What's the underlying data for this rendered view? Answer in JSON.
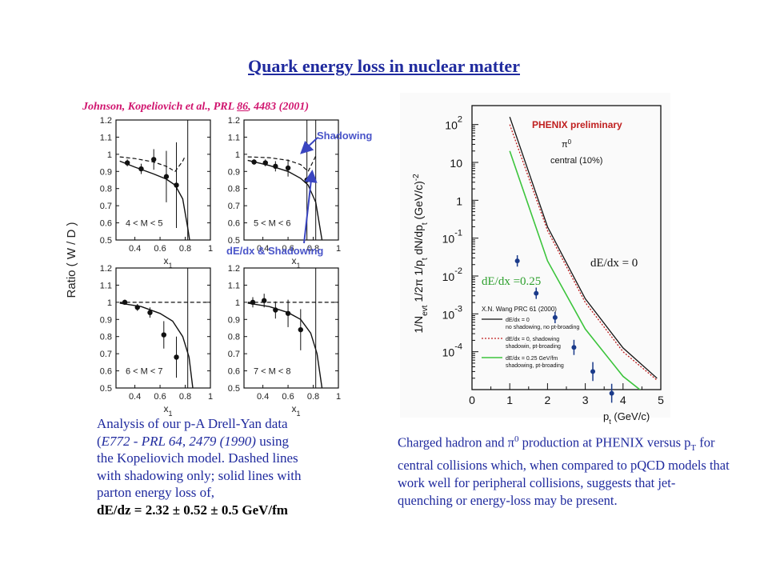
{
  "slide": {
    "title": "Quark energy loss in nuclear matter",
    "citation_pre": "Johnson, Kopeliovich et al., PRL ",
    "citation_vol": "86",
    "citation_post": ", 4483 (2001)"
  },
  "annotations": {
    "shadowing": "Shadowing",
    "dedx_shadowing": "dE/dx & Shadowing"
  },
  "left_caption": {
    "line1": "Analysis of our p-A Drell-Yan data",
    "line2a": "(",
    "line2b": "E772 - PRL 64, 2479 (1990)",
    "line2c": " using",
    "line3": "the Kopeliovich model. Dashed lines",
    "line4": "with shadowing only; solid lines with",
    "line5": "parton energy loss of,",
    "line6": "dE/dz = 2.32 ± 0.52 ± 0.5 GeV/fm"
  },
  "right_caption": {
    "t1": "Charged hadron and ",
    "pi": "π",
    "zero": "0",
    "t2": " production at PHENIX versus p",
    "sub": "T",
    "t3": " for central collisions which, when compared to pQCD models that work well for peripheral collisions, suggests that jet-quenching or energy-loss may be present."
  },
  "colors": {
    "title": "#1f2a9e",
    "citation": "#d0146e",
    "data_point": "#1a3a8a",
    "green_curve": "#3cc43c",
    "red_curve": "#c02020"
  },
  "chart_data": [
    {
      "type": "scatter",
      "panel": "4 < M < 5",
      "ylabel": "Ratio ( W / D )",
      "xlabel": "x1",
      "xticks": [
        "0.4",
        "0.6",
        "0.8",
        "1"
      ],
      "yticks": [
        "0.5",
        "0.6",
        "0.7",
        "0.8",
        "0.9",
        "1",
        "1.1",
        "1.2"
      ],
      "xlim": [
        0.25,
        1.0
      ],
      "ylim": [
        0.5,
        1.2
      ],
      "points": [
        {
          "x": 0.34,
          "y": 0.95,
          "err": 0.02
        },
        {
          "x": 0.45,
          "y": 0.915,
          "err": 0.03
        },
        {
          "x": 0.55,
          "y": 0.97,
          "err": 0.06
        },
        {
          "x": 0.65,
          "y": 0.87,
          "err": 0.15
        },
        {
          "x": 0.73,
          "y": 0.82,
          "err": 0.25
        }
      ],
      "dashed": [
        [
          0.28,
          0.985
        ],
        [
          0.4,
          0.975
        ],
        [
          0.55,
          0.955
        ],
        [
          0.65,
          0.93
        ],
        [
          0.72,
          0.9
        ],
        [
          0.78,
          0.96
        ],
        [
          0.8,
          0.99
        ]
      ],
      "solid": [
        [
          0.28,
          0.96
        ],
        [
          0.4,
          0.925
        ],
        [
          0.55,
          0.885
        ],
        [
          0.65,
          0.855
        ],
        [
          0.72,
          0.82
        ],
        [
          0.78,
          0.74
        ],
        [
          0.82,
          0.57
        ],
        [
          0.835,
          0.5
        ]
      ]
    },
    {
      "type": "scatter",
      "panel": "5 < M < 6",
      "xlabel": "x1",
      "xticks": [
        "0.4",
        "0.6",
        "0.8",
        "1"
      ],
      "yticks": [
        "0.5",
        "0.6",
        "0.7",
        "0.8",
        "0.9",
        "1",
        "1.1",
        "1.2"
      ],
      "xlim": [
        0.25,
        1.0
      ],
      "ylim": [
        0.5,
        1.2
      ],
      "points": [
        {
          "x": 0.33,
          "y": 0.955,
          "err": 0.015
        },
        {
          "x": 0.42,
          "y": 0.95,
          "err": 0.02
        },
        {
          "x": 0.5,
          "y": 0.93,
          "err": 0.03
        },
        {
          "x": 0.6,
          "y": 0.92,
          "err": 0.05
        },
        {
          "x": 0.75,
          "y": 0.85,
          "err": 0.35
        }
      ],
      "dashed": [
        [
          0.28,
          0.985
        ],
        [
          0.45,
          0.98
        ],
        [
          0.6,
          0.965
        ],
        [
          0.7,
          0.94
        ],
        [
          0.76,
          0.9
        ],
        [
          0.82,
          0.99
        ]
      ],
      "solid": [
        [
          0.28,
          0.965
        ],
        [
          0.45,
          0.935
        ],
        [
          0.6,
          0.9
        ],
        [
          0.7,
          0.86
        ],
        [
          0.76,
          0.82
        ],
        [
          0.82,
          0.72
        ],
        [
          0.87,
          0.5
        ]
      ]
    },
    {
      "type": "scatter",
      "panel": "6 < M < 7",
      "xlabel": "x1",
      "xticks": [
        "0.4",
        "0.6",
        "0.8",
        "1"
      ],
      "yticks": [
        "0.5",
        "0.6",
        "0.7",
        "0.8",
        "0.9",
        "1",
        "1.1",
        "1.2"
      ],
      "xlim": [
        0.25,
        1.0
      ],
      "ylim": [
        0.5,
        1.2
      ],
      "points": [
        {
          "x": 0.32,
          "y": 1.0,
          "err": 0.015
        },
        {
          "x": 0.42,
          "y": 0.97,
          "err": 0.02
        },
        {
          "x": 0.52,
          "y": 0.94,
          "err": 0.03
        },
        {
          "x": 0.63,
          "y": 0.81,
          "err": 0.08
        },
        {
          "x": 0.73,
          "y": 0.68,
          "err": 0.12
        }
      ],
      "dashed": [
        [
          0.28,
          1.0
        ],
        [
          0.5,
          1.0
        ],
        [
          0.7,
          1.0
        ],
        [
          0.85,
          1.0
        ],
        [
          1.0,
          1.0
        ]
      ],
      "solid": [
        [
          0.28,
          0.995
        ],
        [
          0.45,
          0.975
        ],
        [
          0.6,
          0.935
        ],
        [
          0.7,
          0.89
        ],
        [
          0.78,
          0.8
        ],
        [
          0.83,
          0.68
        ],
        [
          0.86,
          0.5
        ]
      ]
    },
    {
      "type": "scatter",
      "panel": "7 < M < 8",
      "xlabel": "x1",
      "xticks": [
        "0.4",
        "0.6",
        "0.8",
        "1"
      ],
      "yticks": [
        "0.5",
        "0.6",
        "0.7",
        "0.8",
        "0.9",
        "1",
        "1.1",
        "1.2"
      ],
      "xlim": [
        0.25,
        1.0
      ],
      "ylim": [
        0.5,
        1.2
      ],
      "points": [
        {
          "x": 0.32,
          "y": 1.0,
          "err": 0.03
        },
        {
          "x": 0.41,
          "y": 1.01,
          "err": 0.04
        },
        {
          "x": 0.5,
          "y": 0.955,
          "err": 0.05
        },
        {
          "x": 0.6,
          "y": 0.935,
          "err": 0.08
        },
        {
          "x": 0.7,
          "y": 0.84,
          "err": 0.12
        }
      ],
      "dashed": [
        [
          0.28,
          1.0
        ],
        [
          0.5,
          1.0
        ],
        [
          0.7,
          1.0
        ],
        [
          0.85,
          1.0
        ],
        [
          1.0,
          1.0
        ]
      ],
      "solid": [
        [
          0.28,
          0.995
        ],
        [
          0.45,
          0.975
        ],
        [
          0.6,
          0.94
        ],
        [
          0.7,
          0.9
        ],
        [
          0.78,
          0.82
        ],
        [
          0.83,
          0.7
        ],
        [
          0.87,
          0.5
        ]
      ]
    },
    {
      "type": "line",
      "title": "PHENIX preliminary",
      "annotation1": "π0",
      "annotation2": "central (10%)",
      "xlabel_main": "p",
      "xlabel_sub": "t",
      "xlabel_unit": " (GeV/c)",
      "ylabel": "1/Nevt 1/2π 1/pt dN/dpt (GeV/c)-2",
      "ylabel_pre": "1/N",
      "ylabel_evt": "evt",
      "ylabel_mid": " 1/2π 1/p",
      "ylabel_t1": "t",
      "ylabel_dn": " dN/dp",
      "ylabel_t2": "t",
      "ylabel_unit": " (GeV/c)",
      "ylabel_exp": "-2",
      "log_y": true,
      "xlim": [
        0,
        5
      ],
      "ylim_log10": [
        -5,
        2.5
      ],
      "xticks": [
        "0",
        "1",
        "2",
        "3",
        "4",
        "5"
      ],
      "yticks": [
        {
          "base": "10",
          "exp": "2"
        },
        {
          "base": "10",
          "exp": ""
        },
        {
          "base": "1",
          "exp": ""
        },
        {
          "base": "10",
          "exp": "-1"
        },
        {
          "base": "10",
          "exp": "-2"
        },
        {
          "base": "10",
          "exp": "-3"
        },
        {
          "base": "10",
          "exp": "-4"
        }
      ],
      "points": [
        {
          "x": 1.2,
          "y": 0.025,
          "err_log": 0.15
        },
        {
          "x": 1.7,
          "y": 0.0035,
          "err_log": 0.15
        },
        {
          "x": 2.2,
          "y": 0.0008,
          "err_log": 0.15
        },
        {
          "x": 2.7,
          "y": 0.00013,
          "err_log": 0.2
        },
        {
          "x": 3.2,
          "y": 3e-05,
          "err_log": 0.25
        },
        {
          "x": 3.7,
          "y": 8e-06,
          "err_log": 0.25
        }
      ],
      "series": [
        {
          "name": "dE/dx = 0",
          "style": "black",
          "points": [
            [
              1.0,
              2.2
            ],
            [
              2.0,
              -0.7
            ],
            [
              3.0,
              -2.6
            ],
            [
              4.0,
              -3.9
            ],
            [
              4.9,
              -4.7
            ]
          ]
        },
        {
          "name": "dE/dx = 0, shadowing",
          "style": "red-dotted",
          "points": [
            [
              1.0,
              2.0
            ],
            [
              2.0,
              -0.8
            ],
            [
              3.0,
              -2.7
            ],
            [
              4.0,
              -4.0
            ],
            [
              4.9,
              -4.75
            ]
          ]
        },
        {
          "name": "dE/dx = 0.25 GeV/fm",
          "style": "green",
          "points": [
            [
              1.0,
              1.3
            ],
            [
              2.0,
              -1.6
            ],
            [
              3.0,
              -3.4
            ],
            [
              4.0,
              -4.65
            ],
            [
              4.7,
              -5.2
            ]
          ]
        }
      ],
      "labels": {
        "black_curve": "dE/dx = 0",
        "green_curve": "dE/dx =0.25"
      },
      "legend_title": "X.N. Wang PRC 61 (2000)",
      "legend": [
        {
          "line1": "dE/dx = 0",
          "line2": "no shadowing, no pt-broading",
          "style": "black"
        },
        {
          "line1": "dE/dx = 0, shadowing",
          "line2": "shadowin, pt-broading",
          "style": "red-dotted"
        },
        {
          "line1": "dE/dx = 0.25 GeV/fm",
          "line2": "shadowing, pt-broading",
          "style": "green"
        }
      ]
    }
  ]
}
